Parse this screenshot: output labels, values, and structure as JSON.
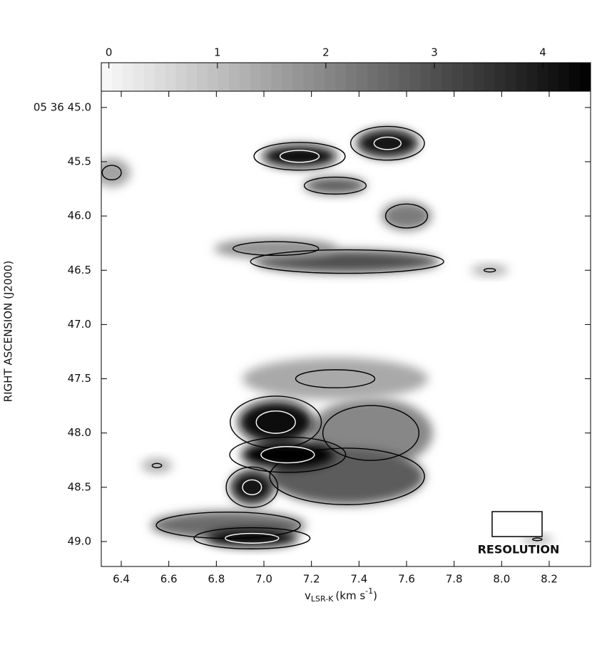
{
  "chart_data": {
    "type": "pv-map",
    "xlabel": {
      "text": "v",
      "sub": "LSR-K",
      "unit": "(km s",
      "sup": "-1",
      "close": ")"
    },
    "ylabel": "RIGHT ASCENSION (J2000)",
    "annotation": "RESOLUTION",
    "xlim": [
      6.316,
      8.374
    ],
    "xticks": [
      6.4,
      6.6,
      6.8,
      {
        "value": 7.0,
        "label": "7.0"
      },
      7.2,
      7.4,
      7.6,
      7.8,
      {
        "value": 8.0,
        "label": "8.0"
      },
      8.2
    ],
    "ylim": [
      44.85,
      49.23
    ],
    "yticks": [
      {
        "value": 45.0,
        "label": "05 36 45.0"
      },
      45.5,
      {
        "value": 46.0,
        "label": "46.0"
      },
      46.5,
      {
        "value": 47.0,
        "label": "47.0"
      },
      47.5,
      {
        "value": 48.0,
        "label": "48.0"
      },
      48.5,
      {
        "value": 49.0,
        "label": "49.0"
      }
    ],
    "colorbar": {
      "lim": [
        -0.07,
        4.44
      ],
      "ticks": [
        0,
        1,
        2,
        3,
        4
      ]
    },
    "contours": {
      "levels": [
        1.2,
        3.4
      ],
      "colors": [
        "#000000",
        "#ffffff"
      ]
    },
    "clumps": [
      {
        "x": 7.15,
        "y": 45.45,
        "sx": 0.12,
        "sy": 0.08,
        "value": 4.3
      },
      {
        "x": 7.52,
        "y": 45.33,
        "sx": 0.1,
        "sy": 0.1,
        "value": 4.0
      },
      {
        "x": 7.3,
        "y": 45.72,
        "sx": 0.1,
        "sy": 0.06,
        "value": 2.8
      },
      {
        "x": 7.6,
        "y": 46.0,
        "sx": 0.08,
        "sy": 0.1,
        "value": 2.2
      },
      {
        "x": 7.35,
        "y": 46.42,
        "sx": 0.3,
        "sy": 0.08,
        "value": 3.0
      },
      {
        "x": 7.05,
        "y": 46.3,
        "sx": 0.2,
        "sy": 0.07,
        "value": 1.8
      },
      {
        "x": 7.45,
        "y": 48.0,
        "sx": 0.2,
        "sy": 0.25,
        "value": 2.0
      },
      {
        "x": 7.3,
        "y": 47.5,
        "sx": 0.3,
        "sy": 0.15,
        "value": 1.4
      },
      {
        "x": 7.35,
        "y": 48.4,
        "sx": 0.25,
        "sy": 0.2,
        "value": 2.8
      },
      {
        "x": 6.85,
        "y": 48.85,
        "sx": 0.25,
        "sy": 0.1,
        "value": 2.5
      },
      {
        "x": 7.05,
        "y": 47.9,
        "sx": 0.12,
        "sy": 0.15,
        "value": 4.3
      },
      {
        "x": 7.1,
        "y": 48.2,
        "sx": 0.15,
        "sy": 0.1,
        "value": 4.5
      },
      {
        "x": 6.95,
        "y": 48.5,
        "sx": 0.07,
        "sy": 0.12,
        "value": 4.0
      },
      {
        "x": 6.95,
        "y": 48.97,
        "sx": 0.15,
        "sy": 0.06,
        "value": 4.5
      },
      {
        "x": 6.55,
        "y": 48.3,
        "sx": 0.05,
        "sy": 0.05,
        "value": 1.3
      },
      {
        "x": 6.36,
        "y": 45.6,
        "sx": 0.06,
        "sy": 0.1,
        "value": 1.5
      },
      {
        "x": 7.95,
        "y": 46.5,
        "sx": 0.06,
        "sy": 0.04,
        "value": 1.3
      },
      {
        "x": 8.15,
        "y": 48.98,
        "sx": 0.05,
        "sy": 0.03,
        "value": 1.3
      }
    ]
  }
}
